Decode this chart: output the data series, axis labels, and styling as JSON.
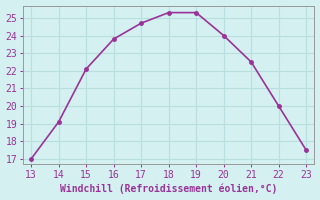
{
  "x": [
    13,
    14,
    15,
    16,
    17,
    18,
    19,
    20,
    21,
    22,
    23
  ],
  "y": [
    17.0,
    19.1,
    22.1,
    23.8,
    24.7,
    25.3,
    25.3,
    24.0,
    22.5,
    20.0,
    17.5
  ],
  "line_color": "#993399",
  "marker": ".",
  "marker_size": 5,
  "line_width": 1.2,
  "xlabel": "Windchill (Refroidissement éolien,°C)",
  "xlim": [
    13,
    23
  ],
  "ylim": [
    17,
    25
  ],
  "xticks": [
    13,
    14,
    15,
    16,
    17,
    18,
    19,
    20,
    21,
    22,
    23
  ],
  "yticks": [
    17,
    18,
    19,
    20,
    21,
    22,
    23,
    24,
    25
  ],
  "bg_color": "#d4f0f0",
  "grid_color": "#b8dede",
  "tick_color": "#993399",
  "label_color": "#993399",
  "tick_fontsize": 7,
  "xlabel_fontsize": 7,
  "line_style": "-"
}
